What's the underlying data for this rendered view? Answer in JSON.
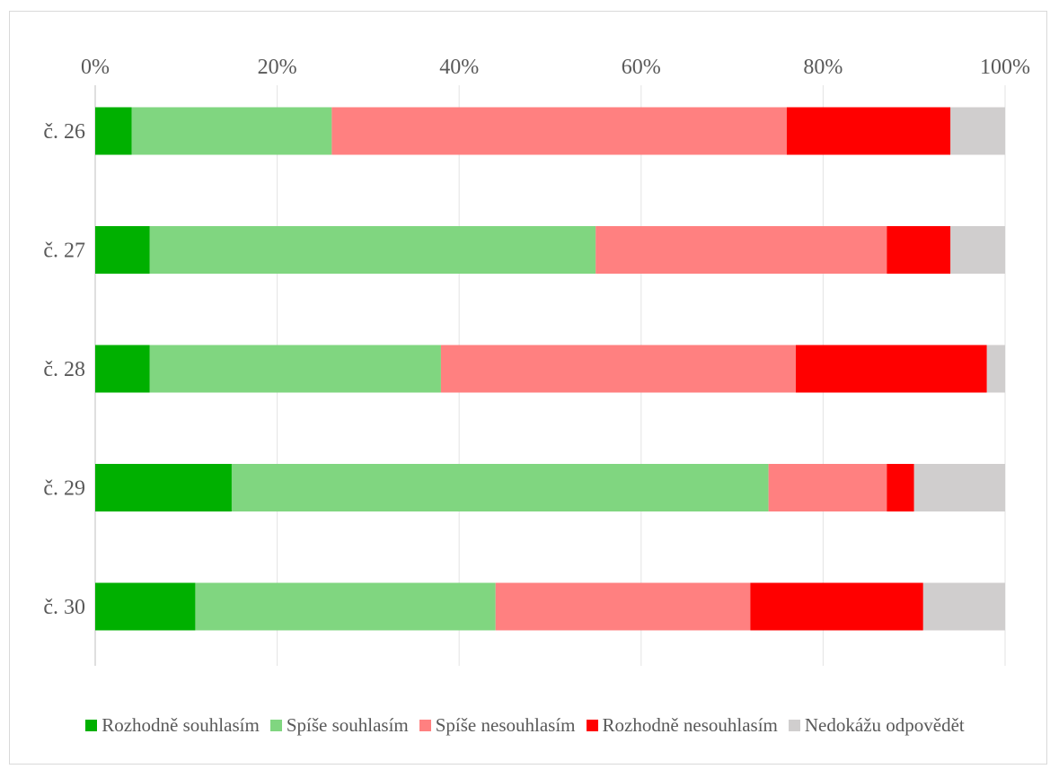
{
  "chart_data": {
    "type": "bar",
    "orientation": "horizontal",
    "stacked": "percent",
    "categories": [
      "č. 26",
      "č. 27",
      "č. 28",
      "č. 29",
      "č. 30"
    ],
    "series": [
      {
        "name": "Rozhodně souhlasím",
        "color": "#00b000",
        "values": [
          4,
          6,
          6,
          15,
          11
        ]
      },
      {
        "name": "Spíše souhlasím",
        "color": "#80d680",
        "values": [
          22,
          49,
          32,
          59,
          33
        ]
      },
      {
        "name": "Spíše nesouhlasím",
        "color": "#ff8080",
        "values": [
          50,
          32,
          39,
          13,
          28
        ]
      },
      {
        "name": "Rozhodně nesouhlasím",
        "color": "#ff0000",
        "values": [
          18,
          7,
          21,
          3,
          19
        ]
      },
      {
        "name": "Nedokážu odpovědět",
        "color": "#d0cece",
        "values": [
          6,
          6,
          2,
          10,
          9
        ]
      }
    ],
    "xlim": [
      0,
      100
    ],
    "ticks": [
      "0%",
      "20%",
      "40%",
      "60%",
      "80%",
      "100%"
    ],
    "tick_values": [
      0,
      20,
      40,
      60,
      80,
      100
    ],
    "grid": true,
    "axis_position": "top",
    "legend_position": "bottom"
  }
}
